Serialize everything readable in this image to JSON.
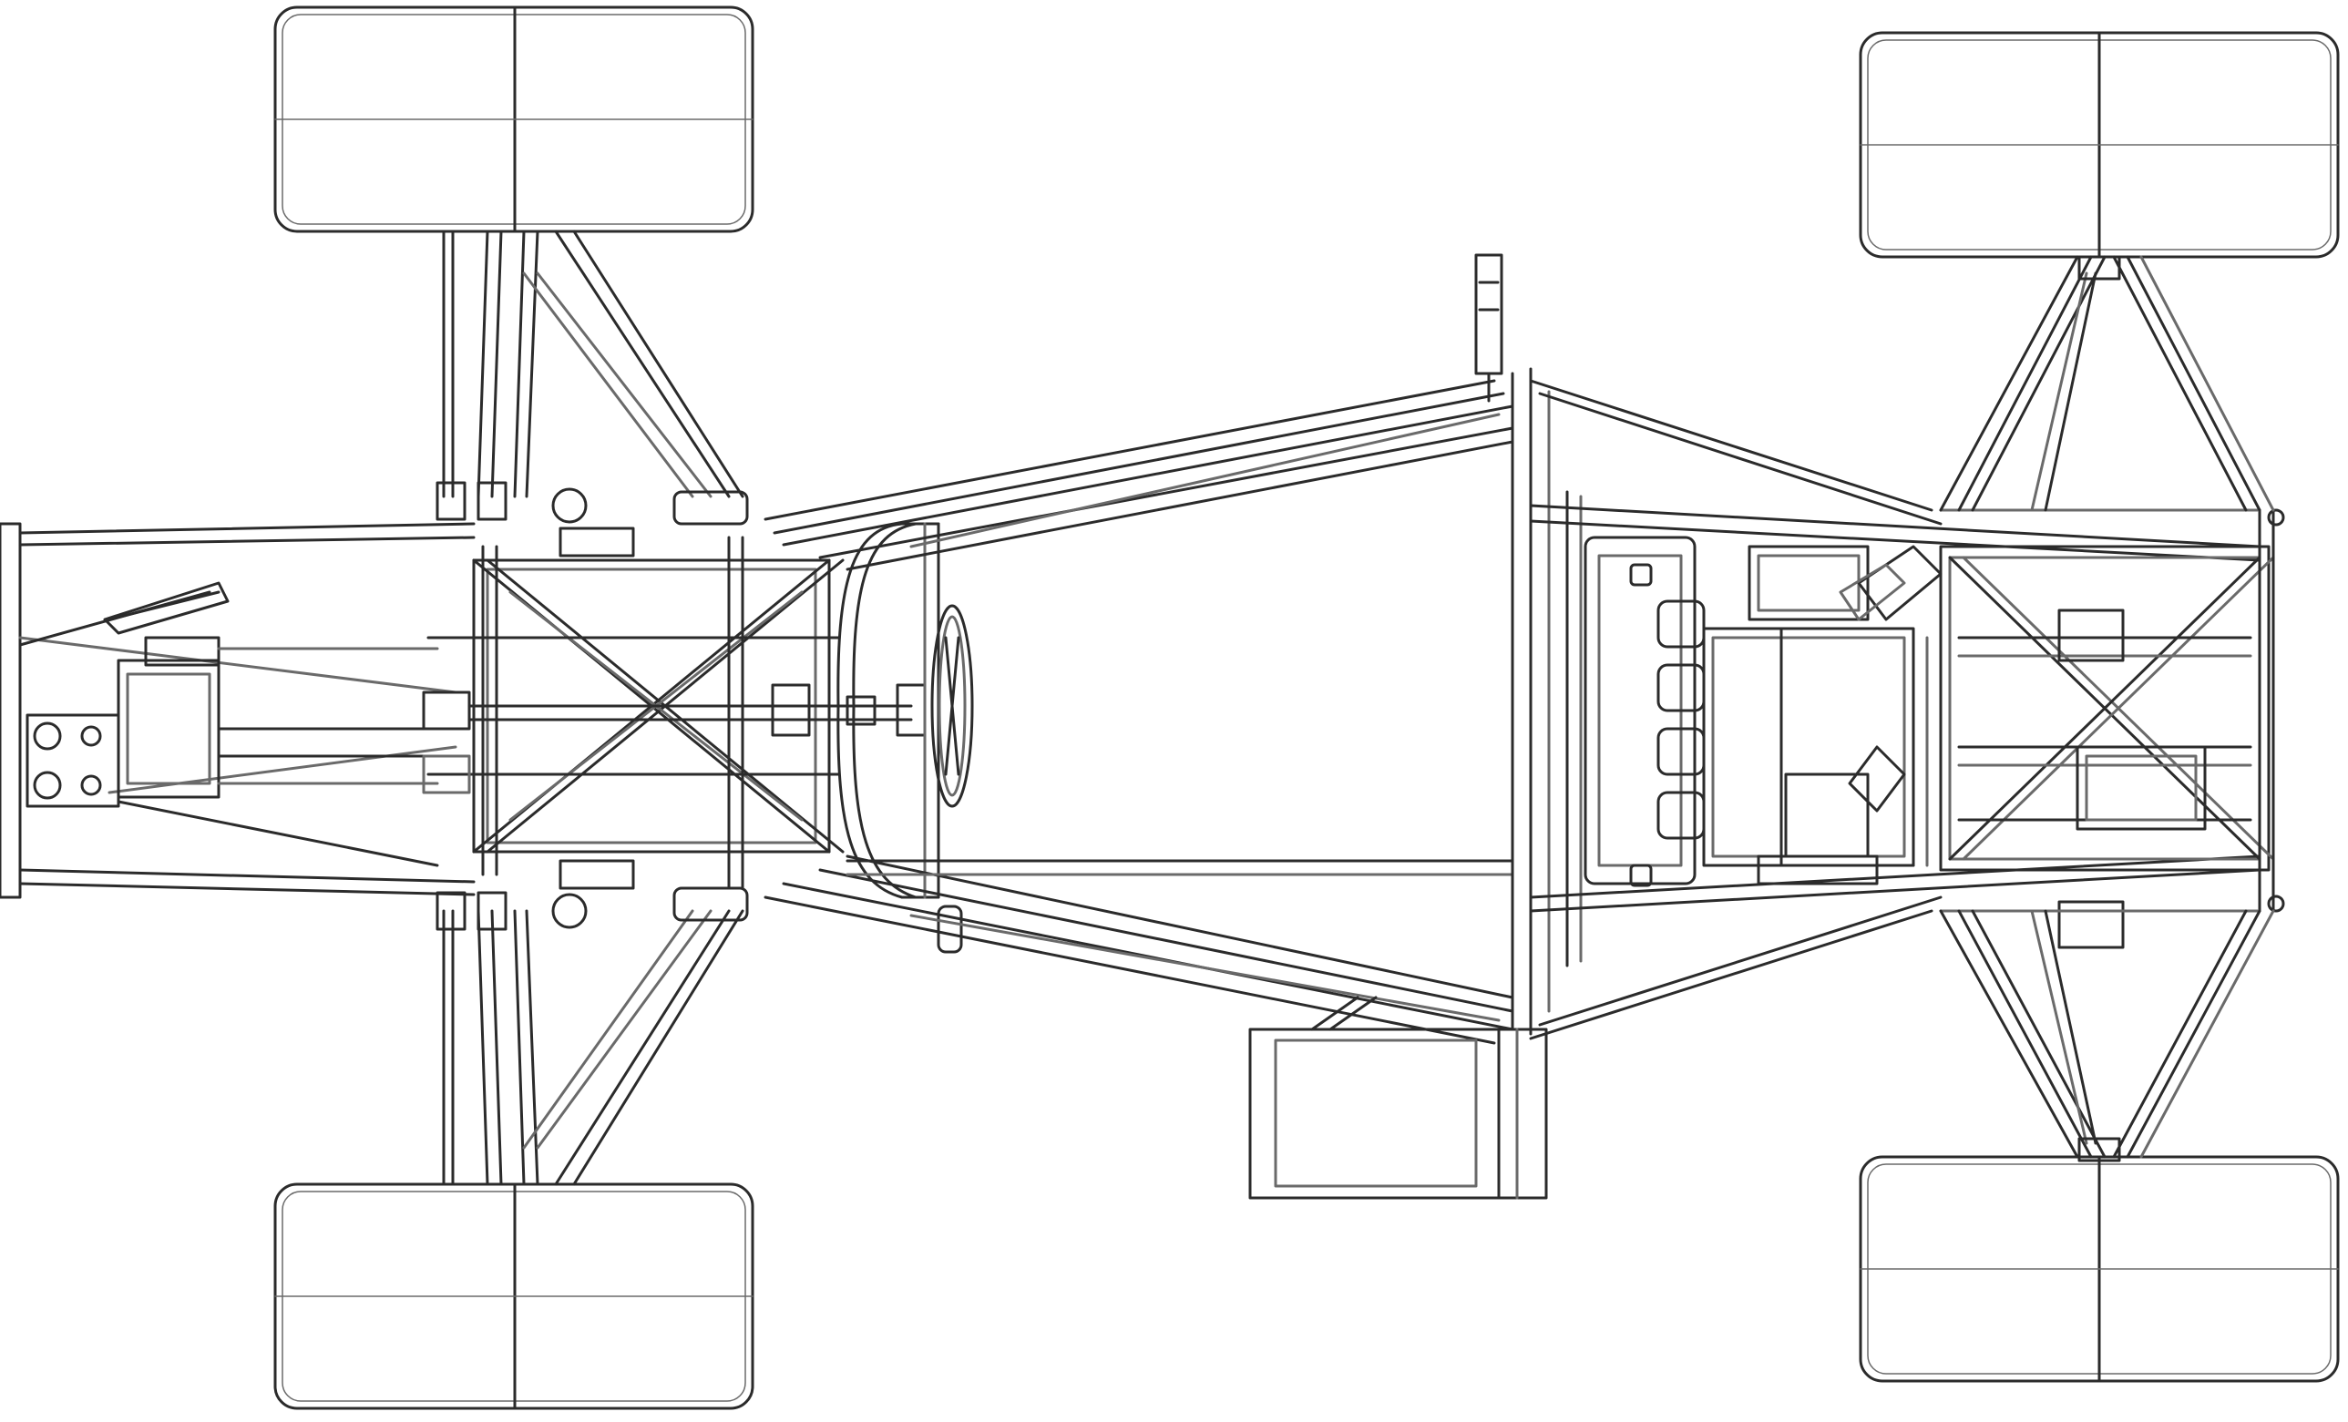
{
  "drawing": {
    "subject": "space-frame-chassis-top-view",
    "colors": {
      "background": "#ffffff",
      "line": "#2b2b2b",
      "light_line": "#6a6a6a"
    },
    "components": [
      "front-left-wheel",
      "front-right-wheel",
      "rear-left-wheel",
      "rear-right-wheel",
      "front-bulkhead",
      "front-suspension-wishbones",
      "steering-rack",
      "main-hoop",
      "steering-wheel",
      "cockpit-side-tubes",
      "side-pod",
      "engine",
      "rear-suspension-wishbones",
      "rear-frame"
    ]
  }
}
